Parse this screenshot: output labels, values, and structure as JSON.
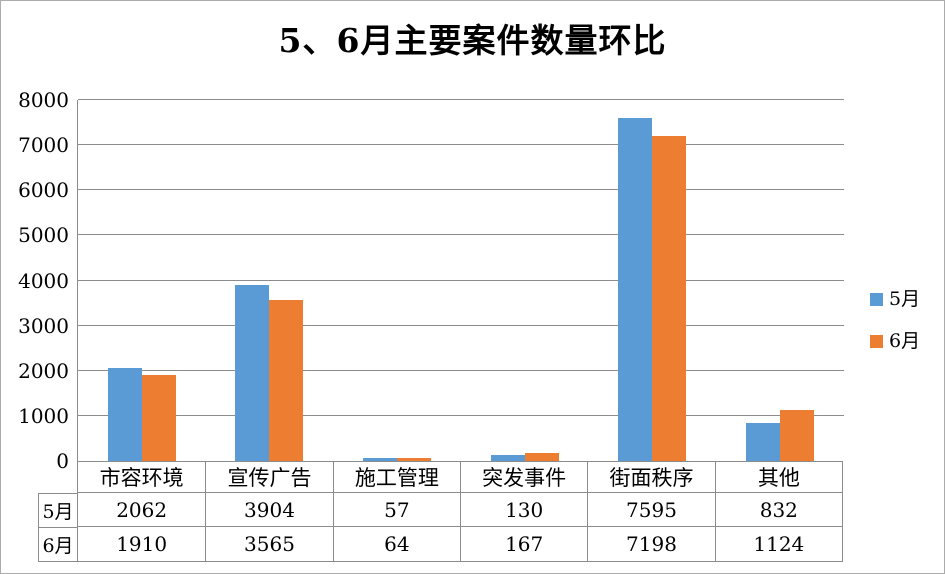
{
  "chart_data": {
    "type": "bar",
    "title": "5、6月主要案件数量环比",
    "categories": [
      "市容环境",
      "宣传广告",
      "施工管理",
      "突发事件",
      "街面秩序",
      "其他"
    ],
    "series": [
      {
        "name": "5月",
        "color": "#5B9BD5",
        "values": [
          2062,
          3904,
          57,
          130,
          7595,
          832
        ]
      },
      {
        "name": "6月",
        "color": "#ED7D31",
        "values": [
          1910,
          3565,
          64,
          167,
          7198,
          1124
        ]
      }
    ],
    "xlabel": "",
    "ylabel": "",
    "ylim": [
      0,
      8000
    ],
    "ytick_interval": 1000,
    "yticks": [
      "0",
      "1000",
      "2000",
      "3000",
      "4000",
      "5000",
      "6000",
      "7000",
      "8000"
    ],
    "grid": true,
    "legend_position": "right",
    "data_table": true,
    "colors": {
      "series_may": "#5B9BD5",
      "series_june": "#ED7D31",
      "gridline": "#8C8C8C",
      "text": "#000000"
    }
  }
}
